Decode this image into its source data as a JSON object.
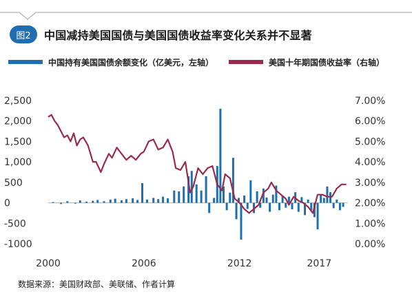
{
  "header": {
    "badge": "图2",
    "title": "中国减持美国国债与美国国债收益率变化关系并不显著"
  },
  "legend": [
    {
      "label": "中国持有美国国债余额变化（亿美元，左轴）",
      "color": "#1f6fb0"
    },
    {
      "label": "美国十年期国债收益率（右轴）",
      "color": "#9b2a4a"
    }
  ],
  "source": "数据来源：美国财政部、美联储、作者计算",
  "chart_data": {
    "type": "bar+line",
    "x_ticks": [
      "2000",
      "2006",
      "2012",
      "2017"
    ],
    "x_tick_positions": [
      2000,
      2006,
      2012,
      2017
    ],
    "xlim": [
      2000,
      2018.8
    ],
    "left_axis": {
      "ticks": [
        "2,500",
        "2,000",
        "1,500",
        "1,000",
        "500",
        "0",
        "-500",
        "-1000"
      ],
      "values": [
        2500,
        2000,
        1500,
        1000,
        500,
        0,
        -500,
        -1000
      ],
      "ylim": [
        -1000,
        2500
      ]
    },
    "right_axis": {
      "ticks": [
        "7.00%",
        "6.00%",
        "5.00%",
        "4.00%",
        "3.00%",
        "2.00%",
        "1.00%",
        "0.00%"
      ],
      "values": [
        7,
        6,
        5,
        4,
        3,
        2,
        1,
        0
      ],
      "ylim": [
        0,
        7
      ]
    },
    "series": [
      {
        "kind": "bar",
        "axis": "left",
        "color": "#1f6fb0",
        "points": [
          [
            2000.3,
            20
          ],
          [
            2000.8,
            -30
          ],
          [
            2001.2,
            40
          ],
          [
            2001.7,
            -20
          ],
          [
            2002.0,
            60
          ],
          [
            2002.4,
            30
          ],
          [
            2002.8,
            50
          ],
          [
            2003.1,
            70
          ],
          [
            2003.5,
            40
          ],
          [
            2003.9,
            80
          ],
          [
            2004.2,
            100
          ],
          [
            2004.6,
            60
          ],
          [
            2004.9,
            90
          ],
          [
            2005.3,
            110
          ],
          [
            2005.6,
            70
          ],
          [
            2005.9,
            480
          ],
          [
            2006.2,
            80
          ],
          [
            2006.6,
            120
          ],
          [
            2006.9,
            90
          ],
          [
            2007.2,
            150
          ],
          [
            2007.5,
            110
          ],
          [
            2007.9,
            300
          ],
          [
            2008.2,
            280
          ],
          [
            2008.5,
            400
          ],
          [
            2008.8,
            650
          ],
          [
            2009.0,
            780
          ],
          [
            2009.3,
            450
          ],
          [
            2009.6,
            300
          ],
          [
            2009.9,
            650
          ],
          [
            2010.1,
            -250
          ],
          [
            2010.4,
            120
          ],
          [
            2010.6,
            900
          ],
          [
            2010.8,
            2300
          ],
          [
            2011.0,
            400
          ],
          [
            2011.2,
            -180
          ],
          [
            2011.4,
            250
          ],
          [
            2011.6,
            1100
          ],
          [
            2011.8,
            -400
          ],
          [
            2011.95,
            120
          ],
          [
            2012.1,
            -900
          ],
          [
            2012.3,
            180
          ],
          [
            2012.5,
            -150
          ],
          [
            2012.7,
            550
          ],
          [
            2012.9,
            -250
          ],
          [
            2013.1,
            280
          ],
          [
            2013.3,
            -120
          ],
          [
            2013.5,
            350
          ],
          [
            2013.7,
            130
          ],
          [
            2013.9,
            -220
          ],
          [
            2014.1,
            200
          ],
          [
            2014.3,
            420
          ],
          [
            2014.5,
            -180
          ],
          [
            2014.7,
            180
          ],
          [
            2014.9,
            -120
          ],
          [
            2015.1,
            150
          ],
          [
            2015.3,
            -160
          ],
          [
            2015.5,
            260
          ],
          [
            2015.7,
            -220
          ],
          [
            2015.9,
            140
          ],
          [
            2016.1,
            -300
          ],
          [
            2016.3,
            80
          ],
          [
            2016.5,
            -180
          ],
          [
            2016.7,
            -350
          ],
          [
            2016.9,
            -650
          ],
          [
            2017.1,
            200
          ],
          [
            2017.3,
            120
          ],
          [
            2017.5,
            400
          ],
          [
            2017.7,
            260
          ],
          [
            2017.9,
            -130
          ],
          [
            2018.1,
            80
          ],
          [
            2018.3,
            -180
          ],
          [
            2018.5,
            -100
          ]
        ]
      },
      {
        "kind": "line",
        "axis": "right",
        "color": "#9b2a4a",
        "points": [
          [
            2000.0,
            6.2
          ],
          [
            2000.2,
            6.3
          ],
          [
            2000.4,
            6.0
          ],
          [
            2000.6,
            5.8
          ],
          [
            2000.8,
            5.5
          ],
          [
            2001.0,
            5.2
          ],
          [
            2001.2,
            5.3
          ],
          [
            2001.4,
            5.0
          ],
          [
            2001.6,
            5.4
          ],
          [
            2001.8,
            4.8
          ],
          [
            2002.0,
            5.1
          ],
          [
            2002.2,
            5.2
          ],
          [
            2002.5,
            4.8
          ],
          [
            2002.8,
            4.0
          ],
          [
            2003.0,
            4.0
          ],
          [
            2003.3,
            3.5
          ],
          [
            2003.5,
            3.9
          ],
          [
            2003.8,
            4.4
          ],
          [
            2004.0,
            4.2
          ],
          [
            2004.3,
            4.7
          ],
          [
            2004.6,
            4.4
          ],
          [
            2004.9,
            4.1
          ],
          [
            2005.2,
            4.3
          ],
          [
            2005.5,
            4.1
          ],
          [
            2005.8,
            4.4
          ],
          [
            2006.0,
            4.5
          ],
          [
            2006.3,
            5.0
          ],
          [
            2006.6,
            5.1
          ],
          [
            2006.9,
            4.6
          ],
          [
            2007.2,
            4.7
          ],
          [
            2007.5,
            5.1
          ],
          [
            2007.8,
            4.5
          ],
          [
            2008.0,
            3.7
          ],
          [
            2008.3,
            3.6
          ],
          [
            2008.6,
            4.0
          ],
          [
            2008.9,
            2.5
          ],
          [
            2009.1,
            2.8
          ],
          [
            2009.4,
            3.7
          ],
          [
            2009.7,
            3.4
          ],
          [
            2010.0,
            3.7
          ],
          [
            2010.3,
            3.8
          ],
          [
            2010.6,
            2.9
          ],
          [
            2010.9,
            2.6
          ],
          [
            2011.1,
            3.4
          ],
          [
            2011.4,
            3.2
          ],
          [
            2011.7,
            2.2
          ],
          [
            2012.0,
            2.0
          ],
          [
            2012.3,
            1.7
          ],
          [
            2012.6,
            1.5
          ],
          [
            2012.9,
            1.7
          ],
          [
            2013.2,
            1.9
          ],
          [
            2013.5,
            2.5
          ],
          [
            2013.8,
            2.7
          ],
          [
            2014.0,
            3.0
          ],
          [
            2014.3,
            2.6
          ],
          [
            2014.6,
            2.4
          ],
          [
            2014.9,
            2.2
          ],
          [
            2015.1,
            1.9
          ],
          [
            2015.4,
            2.3
          ],
          [
            2015.7,
            2.1
          ],
          [
            2016.0,
            2.0
          ],
          [
            2016.3,
            1.8
          ],
          [
            2016.6,
            1.5
          ],
          [
            2016.9,
            2.4
          ],
          [
            2017.2,
            2.4
          ],
          [
            2017.5,
            2.3
          ],
          [
            2017.8,
            2.3
          ],
          [
            2018.1,
            2.7
          ],
          [
            2018.4,
            2.9
          ],
          [
            2018.7,
            2.9
          ]
        ]
      }
    ]
  }
}
